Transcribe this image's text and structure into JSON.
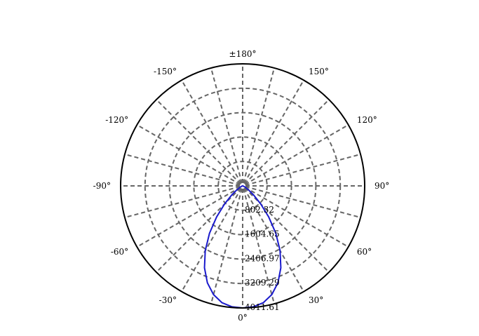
{
  "chart_data": {
    "type": "polar",
    "title": "",
    "angle_labels": [
      {
        "deg": 0,
        "label": "0°"
      },
      {
        "deg": 30,
        "label": "30°"
      },
      {
        "deg": 60,
        "label": "60°"
      },
      {
        "deg": 90,
        "label": "90°"
      },
      {
        "deg": 120,
        "label": "120°"
      },
      {
        "deg": 150,
        "label": "150°"
      },
      {
        "deg": 180,
        "label": "±180°"
      },
      {
        "deg": -150,
        "label": "-150°"
      },
      {
        "deg": -120,
        "label": "-120°"
      },
      {
        "deg": -90,
        "label": "-90°"
      },
      {
        "deg": -60,
        "label": "-60°"
      },
      {
        "deg": -30,
        "label": "-30°"
      }
    ],
    "radial_max": 4011.61,
    "radial_ticks": [
      802.32,
      1604.65,
      2406.97,
      3209.29,
      4011.61
    ],
    "radial_tick_labels": [
      "802.32",
      "1604.65",
      "2406.97",
      "3209.29",
      "4011.61"
    ],
    "angular_grid_step_deg": 15,
    "grid": true,
    "series": [
      {
        "color": "#1a1acc",
        "angles_deg": [
          0,
          5,
          10,
          15,
          20,
          25,
          30,
          35,
          40,
          45,
          50,
          55,
          60,
          65,
          70,
          75,
          80,
          85,
          90
        ],
        "values": [
          4011.61,
          3990,
          3900,
          3700,
          3390,
          2970,
          2460,
          1900,
          1330,
          840,
          480,
          250,
          120,
          60,
          30,
          15,
          8,
          4,
          0
        ]
      }
    ]
  }
}
